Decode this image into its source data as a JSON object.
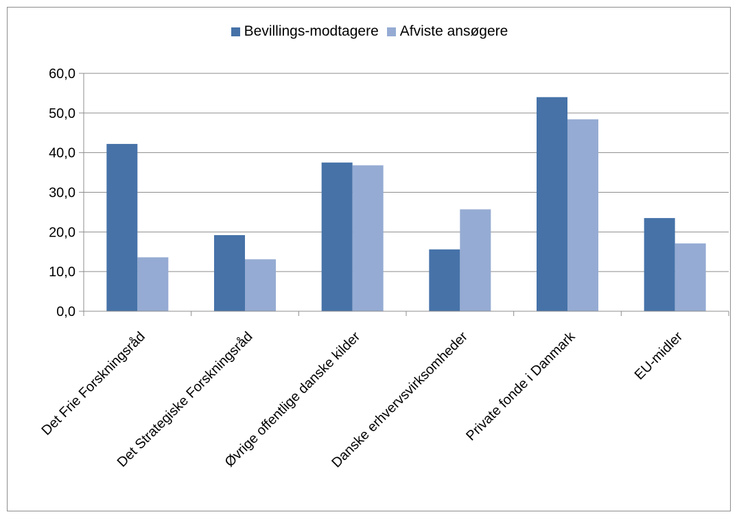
{
  "chart_data": {
    "type": "bar",
    "categories": [
      "Det Frie Forskningsråd",
      "Det Strategiske Forskningsråd",
      "Øvrige offentlige danske kilder",
      "Danske erhvervsvirksomheder",
      "Private fonde i Danmark",
      "EU-midler"
    ],
    "series": [
      {
        "name": "Bevillings-modtagere",
        "color": "#4672a8",
        "values": [
          42.2,
          19.2,
          37.5,
          15.6,
          54.0,
          23.5
        ]
      },
      {
        "name": "Afviste ansøgere",
        "color": "#95abd3",
        "values": [
          13.6,
          13.1,
          36.8,
          25.7,
          48.4,
          17.1
        ]
      }
    ],
    "title": "",
    "xlabel": "",
    "ylabel": "",
    "ylim": [
      0,
      60
    ],
    "yticks": [
      "0,0",
      "10,0",
      "20,0",
      "30,0",
      "40,0",
      "50,0",
      "60,0"
    ],
    "grid": true,
    "legend_position": "top"
  }
}
